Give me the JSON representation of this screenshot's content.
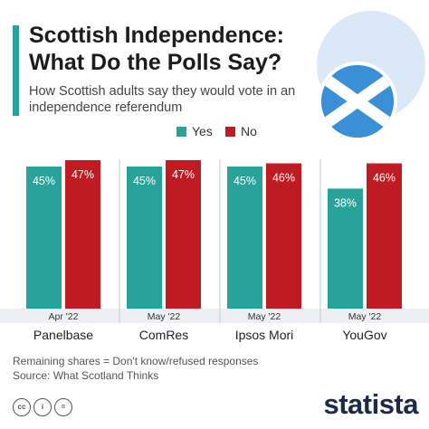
{
  "header": {
    "title": "Scottish Independence: What Do the Polls Say?",
    "subtitle": "How Scottish adults say they would vote in an independence referendum"
  },
  "colors": {
    "accent": "#29a39a",
    "yes": "#29a39a",
    "no": "#bf1b22",
    "band": "#eeeff3",
    "flag_blue": "#3a8fd6"
  },
  "icons": [
    "scotland-flag-icon",
    "cc-icon",
    "info-icon",
    "equals-icon"
  ],
  "chart_data": {
    "type": "bar",
    "categories": [
      "Panelbase",
      "ComRes",
      "Ipsos Mori",
      "YouGov"
    ],
    "periods": [
      "Apr '22",
      "May '22",
      "May '22",
      "May '22"
    ],
    "series": [
      {
        "name": "Yes",
        "values": [
          45,
          45,
          45,
          38
        ],
        "labels": [
          "45%",
          "45%",
          "45%",
          "38%"
        ]
      },
      {
        "name": "No",
        "values": [
          47,
          47,
          46,
          46
        ],
        "labels": [
          "47%",
          "47%",
          "46%",
          "46%"
        ]
      }
    ],
    "ylim": [
      0,
      47
    ],
    "grid": false,
    "legend_position": "top-right",
    "title": "Scottish Independence: What Do the Polls Say?",
    "xlabel": "",
    "ylabel": ""
  },
  "notes": {
    "line1": "Remaining shares = Don't know/refused responses",
    "line2": "Source: What Scotland Thinks"
  },
  "brand": {
    "logo": "statista"
  }
}
